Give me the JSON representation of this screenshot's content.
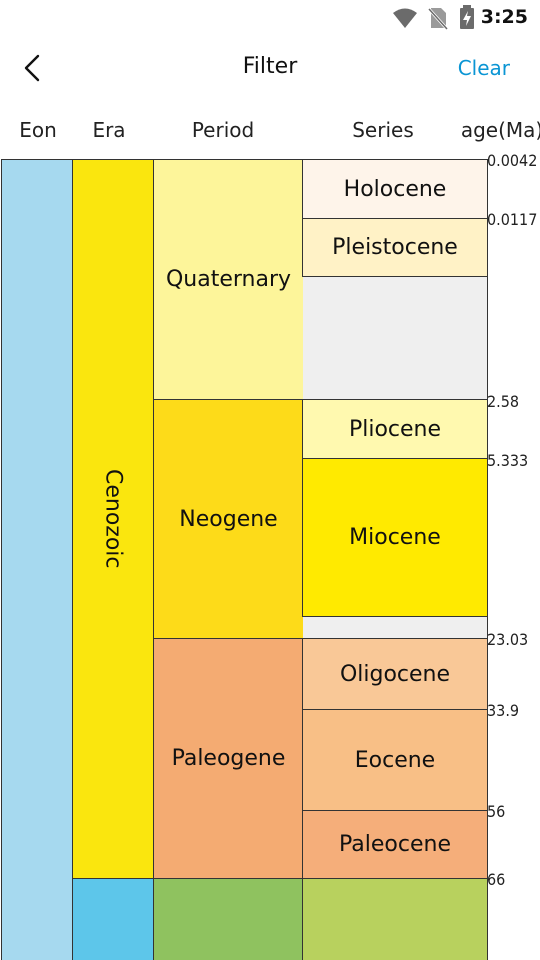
{
  "status_bar": {
    "time": "3:25",
    "icons": [
      "wifi-icon",
      "no-sim-icon",
      "battery-charging-icon"
    ]
  },
  "app_bar": {
    "title": "Filter",
    "clear_label": "Clear",
    "back_icon": "chevron-left-icon"
  },
  "columns": {
    "eon": "Eon",
    "era": "Era",
    "period": "Period",
    "series": "Series",
    "age": "age(Ma)"
  },
  "era": {
    "cenozoic": "Cenozoic"
  },
  "periods": {
    "quaternary": "Quaternary",
    "neogene": "Neogene",
    "paleogene": "Paleogene"
  },
  "series": {
    "holocene": "Holocene",
    "pleistocene": "Pleistocene",
    "pliocene": "Pliocene",
    "miocene": "Miocene",
    "oligocene": "Oligocene",
    "eocene": "Eocene",
    "paleocene": "Paleocene"
  },
  "ages": [
    "0.0042",
    "0.0117",
    "2.58",
    "5.333",
    "23.03",
    "33.9",
    "56",
    "66"
  ],
  "colors": {
    "eon": "#a6d9ef",
    "cenozoic": "#fae60e",
    "quaternary": "#fdf59a",
    "neogene": "#fddb19",
    "paleogene": "#f4ab72",
    "holocene": "#fef4ea",
    "pleistocene": "#fff2c6",
    "pliocene": "#fff9af",
    "miocene": "#ffea00",
    "oligocene": "#f9c897",
    "eocene": "#f8bf86",
    "paleocene": "#f5ae7a",
    "mesozoic": "#5dc6ea",
    "cretaceous": "#8fc25f",
    "upper_cretaceous": "#b8d15e",
    "accent": "#0a95d4"
  }
}
